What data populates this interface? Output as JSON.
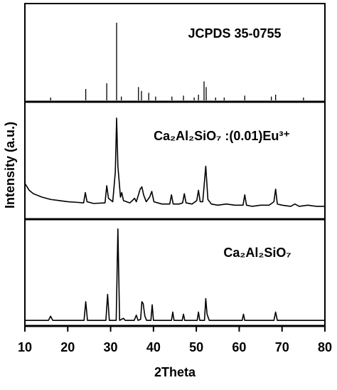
{
  "chart_data": [
    {
      "type": "stick",
      "annotation": "JCPDS 35-0755",
      "xlim": [
        10,
        80
      ],
      "ylim": [
        0,
        100
      ],
      "color": "#000000",
      "x": [
        16,
        24.2,
        29.1,
        31.4,
        32.5,
        36.5,
        37.2,
        38.9,
        40.5,
        44.3,
        47,
        49.5,
        50.5,
        51.8,
        52.3,
        54.5,
        56.5,
        61.3,
        67.5,
        68.5,
        75
      ],
      "values": [
        3,
        12,
        18,
        82,
        4,
        14,
        10,
        8,
        4,
        4,
        5,
        3,
        6,
        20,
        14,
        3,
        3,
        5,
        4,
        6,
        3
      ]
    },
    {
      "type": "line",
      "annotation": "Ca₂Al₂SiO₇ :(0.01)Eu³⁺",
      "y_label": "Intensity (a.u.)",
      "xlim": [
        10,
        80
      ],
      "ylim": [
        0,
        100
      ],
      "color": "#000000",
      "x": [
        10,
        11,
        12,
        14,
        16,
        18,
        20,
        22,
        23.7,
        24.1,
        24.5,
        26,
        28.7,
        29.1,
        29.5,
        30.5,
        31.1,
        31.4,
        31.7,
        32.3,
        32.6,
        33,
        34.5,
        35.6,
        36,
        36.9,
        37.3,
        37.7,
        38.3,
        39.1,
        39.6,
        40.1,
        41,
        42,
        43.8,
        44.2,
        44.6,
        46,
        46.8,
        47.2,
        47.6,
        49,
        50.1,
        50.5,
        50.9,
        51.5,
        52.2,
        52.7,
        53.5,
        55,
        57,
        59,
        60.9,
        61.3,
        61.7,
        63,
        65,
        67,
        68.1,
        68.5,
        68.9,
        70,
        72,
        73,
        74,
        76,
        78,
        80
      ],
      "values": [
        30,
        24,
        21,
        18,
        16,
        15,
        14,
        13.5,
        13,
        22,
        14,
        12.5,
        13,
        28,
        17,
        14,
        40,
        87,
        45,
        18,
        22,
        15,
        13,
        17,
        14,
        25,
        27,
        20,
        14,
        18,
        23,
        14,
        13,
        12,
        12,
        20,
        12,
        12,
        13,
        21,
        13,
        12,
        15,
        24,
        14,
        14,
        45,
        16,
        12,
        11,
        12,
        11,
        11,
        20,
        11,
        10,
        11,
        11,
        14,
        25,
        12,
        11,
        10,
        12,
        10,
        11,
        10,
        10
      ]
    },
    {
      "type": "line",
      "annotation": "Ca₂Al₂SiO₇",
      "x_label": "2Theta",
      "xlim": [
        10,
        80
      ],
      "xticks": [
        10,
        20,
        30,
        40,
        50,
        60,
        70,
        80
      ],
      "ylim": [
        0,
        100
      ],
      "color": "#000000",
      "x": [
        10,
        15.5,
        16,
        16.5,
        20,
        23.8,
        24.2,
        24.6,
        28.9,
        29.3,
        29.7,
        31.3,
        31.7,
        32.1,
        33,
        33.4,
        35.5,
        36,
        36.4,
        37,
        37.3,
        37.6,
        38,
        38.4,
        39.4,
        39.7,
        40,
        42,
        44.2,
        44.5,
        44.8,
        46.7,
        47,
        47.3,
        50.2,
        50.5,
        50.8,
        51.9,
        52.2,
        52.5,
        53,
        56,
        60.7,
        61,
        61.3,
        68.1,
        68.5,
        68.9,
        74,
        80
      ],
      "values": [
        4,
        4,
        8,
        4,
        4,
        4,
        22,
        4,
        4,
        29,
        4,
        4,
        92,
        4,
        6,
        4,
        4,
        9,
        4,
        5,
        22,
        20,
        8,
        4,
        4,
        19,
        4,
        4,
        4,
        12,
        4,
        4,
        10,
        4,
        4,
        12,
        4,
        4,
        25,
        10,
        4,
        4,
        4,
        10,
        4,
        4,
        12,
        4,
        4,
        4
      ]
    }
  ]
}
